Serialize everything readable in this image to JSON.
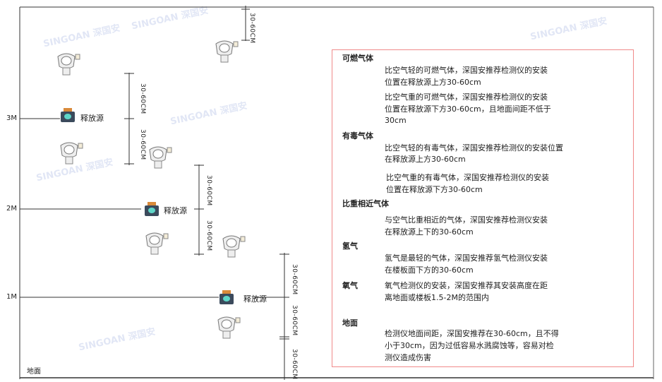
{
  "levels": {
    "m3": "3M",
    "m2": "2M",
    "m1": "1M",
    "ground": "地面"
  },
  "source_label": "释放源",
  "dimension_label": "30-60CM",
  "watermark": "SINGOAN 深国安",
  "colors": {
    "frame": "#333333",
    "textbox_border": "#f08a8a",
    "source_body": "#3b4a5c",
    "source_cap": "#d98a3a",
    "source_face": "#5fd6c8"
  },
  "notes": {
    "combustible": {
      "title": "可燃气体",
      "light": [
        "比空气轻的可燃气体，深国安推荐检测仪的安装",
        "位置在释放源上方30-60cm"
      ],
      "heavy": [
        "比空气重的可燃气体，深国安推荐检测仪的安装",
        "位置在释放源下方30-60cm，且地面间距不低于",
        "30cm"
      ]
    },
    "toxic": {
      "title": "有毒气体",
      "light": [
        "比空气轻的有毒气体，深国安推荐检测仪的安装位置",
        "在释放源上方30-60cm"
      ],
      "heavy": [
        "比空气重的有毒气体，深国安推荐检测仪的安装",
        "位置在释放源下方30-60cm"
      ]
    },
    "similar": {
      "title": "比重相近气体",
      "lines": [
        "与空气比重相近的气体，深国安推荐检测仪安装",
        "在释放源上下的30-60cm"
      ]
    },
    "hydrogen": {
      "title": "氢气",
      "lines": [
        "氢气是最轻的气体，深国安推荐氢气检测仪安装",
        "在楼板面下方的30-60cm"
      ]
    },
    "oxygen": {
      "title": "氧气",
      "lines": [
        "氧气检测仪的安装，深国安推荐其安装高度在距",
        "离地面或楼板1.5-2M的范围内"
      ]
    },
    "ground": {
      "title": "地面",
      "lines": [
        "检测仪地面间距，深国安推荐在30-60cm，且不得",
        "小于30cm，因为过低容易水溅腐蚀等，容易对检",
        "测仪造成伤害"
      ]
    }
  }
}
